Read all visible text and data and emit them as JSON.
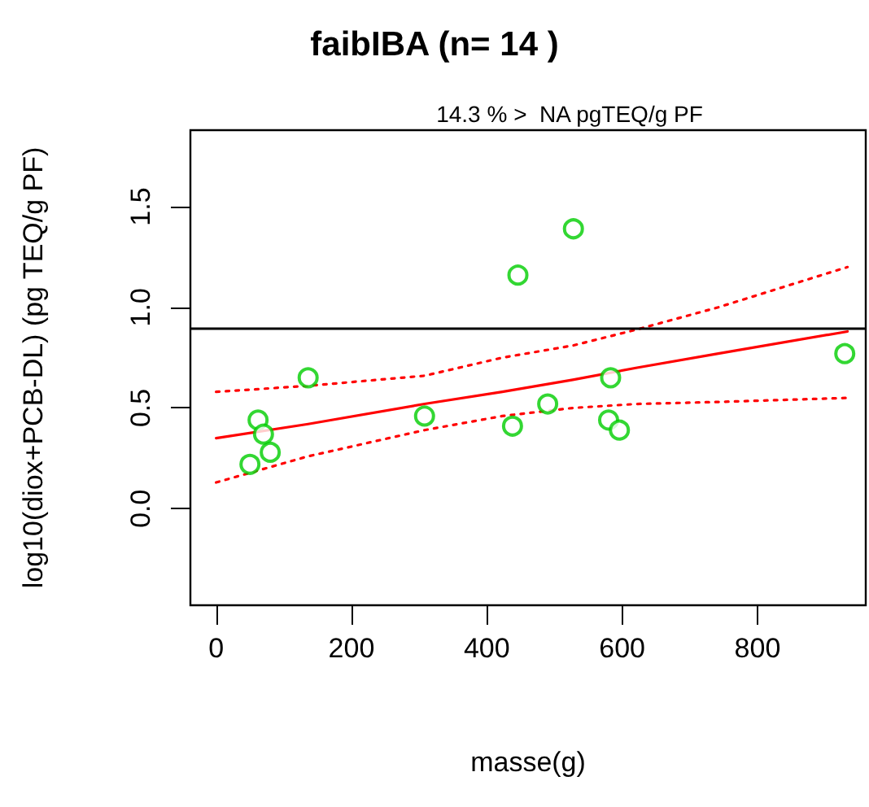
{
  "chart_data": {
    "type": "scatter",
    "title": "faibIBA (n= 14 )",
    "subtitle": "14.3 % >  NA pgTEQ/g PF",
    "xlabel": "masse(g)",
    "ylabel": "log10(diox+PCB-DL) (pg TEQ/g PF)",
    "xlim": [
      -38,
      960
    ],
    "xticks": [
      0,
      200,
      400,
      600,
      800
    ],
    "ylim": [
      -0.48,
      1.88
    ],
    "yticks": [
      {
        "value": 0,
        "label": "0.0"
      },
      0.5,
      {
        "value": 1,
        "label": "1.0"
      },
      1.5
    ],
    "grid": false,
    "series": [
      {
        "marker": "circle",
        "color": "#00cd00",
        "x": [
          50,
          62,
          70,
          80,
          136,
          308,
          446,
          438,
          490,
          528,
          580,
          583,
          596,
          929
        ],
        "values": [
          0.22,
          0.44,
          0.37,
          0.28,
          0.65,
          0.46,
          1.16,
          0.41,
          0.52,
          1.39,
          0.44,
          0.65,
          0.39,
          0.77
        ]
      },
      {
        "type": "line",
        "marker": "none",
        "line_style": "solid",
        "color": "#ff0000",
        "x": [
          0,
          136,
          308,
          423,
          527,
          622,
          742,
          933
        ],
        "values": [
          0.35,
          0.42,
          0.52,
          0.58,
          0.64,
          0.7,
          0.77,
          0.88
        ]
      },
      {
        "type": "line",
        "marker": "none",
        "line_style": "dotted",
        "color": "#ff0000",
        "x": [
          0,
          136,
          308,
          423,
          527,
          622,
          742,
          933
        ],
        "values": [
          0.58,
          0.61,
          0.66,
          0.75,
          0.81,
          0.89,
          1.0,
          1.2
        ]
      },
      {
        "type": "line",
        "marker": "none",
        "line_style": "dotted",
        "color": "#ff0000",
        "x": [
          0,
          136,
          308,
          423,
          527,
          622,
          742,
          933
        ],
        "values": [
          0.13,
          0.26,
          0.39,
          0.46,
          0.5,
          0.52,
          0.53,
          0.55
        ]
      }
    ],
    "ref_lines": [
      {
        "axis": "y",
        "value": 0.9,
        "color": "#000000",
        "line_style": "solid"
      }
    ]
  }
}
